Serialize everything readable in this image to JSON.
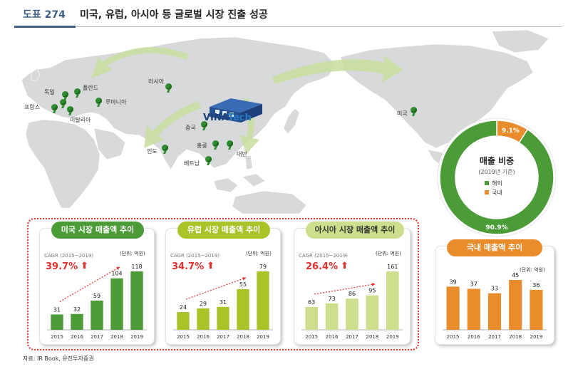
{
  "header": {
    "figure_num": "도표 274",
    "title": "미국, 유럽, 아시아 등 글로벌 시장 진출 성공"
  },
  "map": {
    "labels": {
      "russia": "러시아",
      "germany": "독일",
      "poland": "폴란드",
      "france": "프랑스",
      "romania": "루마니아",
      "italy": "이탈리아",
      "china": "중국",
      "hongkong": "홍콩",
      "taiwan": "대만",
      "india": "인도",
      "vietnam": "베트남",
      "usa": "미국"
    },
    "logo": {
      "part1": "VINA",
      "part2": "Tech"
    }
  },
  "colors": {
    "us": "#4b9b37",
    "eu": "#a9c428",
    "asia": "#cddf8c",
    "domestic": "#e98c2c",
    "red": "#e0322f"
  },
  "donut": {
    "title": "매출 비중",
    "subtitle": "(2019년 기준)",
    "legend": [
      "해외",
      "국내"
    ],
    "slices": [
      {
        "name": "해외",
        "value": 90.9,
        "label": "90.9%",
        "color": "#4b9b37"
      },
      {
        "name": "국내",
        "value": 9.1,
        "label": "9.1%",
        "color": "#e98c2c"
      }
    ]
  },
  "panels": [
    {
      "title": "미국 시장 매출액 추이",
      "cagr_label": "CAGR (2015~2019)",
      "cagr_value": "39.7%",
      "unit": "(단위: 억원)"
    },
    {
      "title": "유럽 시장 매출액 추이",
      "cagr_label": "CAGR (2015~2019)",
      "cagr_value": "34.7%",
      "unit": "(단위: 억원)"
    },
    {
      "title": "아시아 시장 매출액 추이",
      "cagr_label": "CAGR (2015~2019)",
      "cagr_value": "26.4%",
      "unit": "(단위: 억원)"
    },
    {
      "title": "국내 매출액 추이",
      "unit": "(단위: 억원)"
    }
  ],
  "chart_data": [
    {
      "type": "bar",
      "title": "미국 시장 매출액 추이",
      "categories": [
        "2015",
        "2016",
        "2017",
        "2018",
        "2019"
      ],
      "values": [
        31,
        32,
        59,
        104,
        118
      ],
      "ylabel": "(단위: 억원)",
      "annotation": "CAGR (2015~2019) 39.7%"
    },
    {
      "type": "bar",
      "title": "유럽 시장 매출액 추이",
      "categories": [
        "2015",
        "2016",
        "2017",
        "2018",
        "2019"
      ],
      "values": [
        24,
        29,
        31,
        55,
        79
      ],
      "ylabel": "(단위: 억원)",
      "annotation": "CAGR (2015~2019) 34.7%"
    },
    {
      "type": "bar",
      "title": "아시아 시장 매출액 추이",
      "categories": [
        "2015",
        "2016",
        "2017",
        "2018",
        "2019"
      ],
      "values": [
        63,
        73,
        86,
        95,
        161
      ],
      "ylabel": "(단위: 억원)",
      "annotation": "CAGR (2015~2019) 26.4%"
    },
    {
      "type": "bar",
      "title": "국내 매출액 추이",
      "categories": [
        "2015",
        "2016",
        "2017",
        "2018",
        "2019"
      ],
      "values": [
        39,
        37,
        33,
        45,
        36
      ],
      "ylabel": "(단위: 억원)"
    },
    {
      "type": "pie",
      "title": "매출 비중",
      "subtitle": "(2019년 기준)",
      "categories": [
        "해외",
        "국내"
      ],
      "values": [
        90.9,
        9.1
      ]
    }
  ],
  "source": "자료: IR Book, 유진투자증권"
}
